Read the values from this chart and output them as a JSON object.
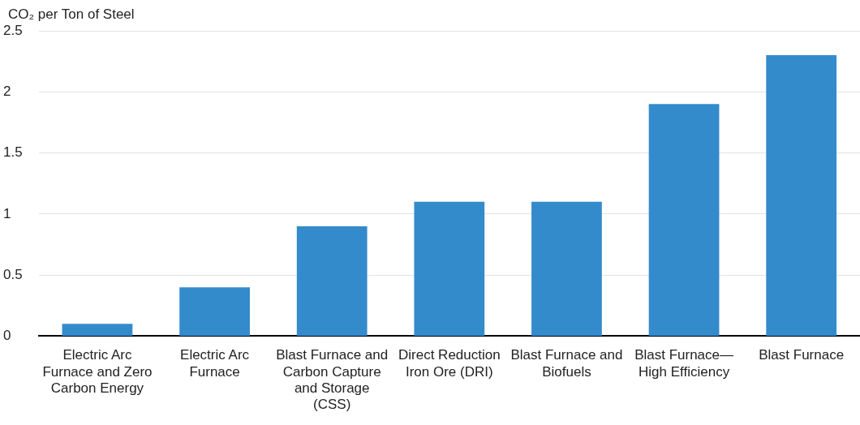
{
  "chart_data": {
    "type": "bar",
    "ylabel": "CO₂ per Ton of Steel",
    "categories": [
      "Electric Arc Furnace and Zero Carbon Energy",
      "Electric Arc Furnace",
      "Blast Furnace and Carbon Capture and Storage (CSS)",
      "Direct Reduction Iron Ore (DRI)",
      "Blast Furnace and Biofuels",
      "Blast Furnace—High Efficiency",
      "Blast Furnace"
    ],
    "values": [
      0.1,
      0.4,
      0.9,
      1.1,
      1.1,
      1.9,
      2.3
    ],
    "color": "#348bcc",
    "ylim": [
      0,
      2.5
    ],
    "yticks": [
      0,
      0.5,
      1,
      1.5,
      2,
      2.5
    ],
    "grid": "y",
    "legend": false
  }
}
